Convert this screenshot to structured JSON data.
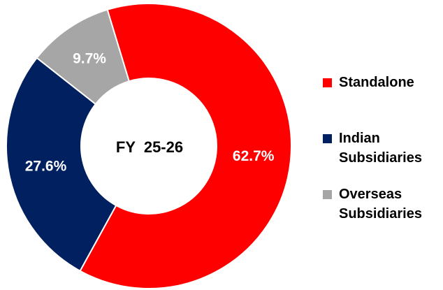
{
  "chart_data": {
    "type": "pie",
    "center_label": "FY  25-26",
    "categories": [
      "Standalone",
      "Indian Subsidiaries",
      "Overseas Subsidiaries"
    ],
    "values": [
      62.7,
      27.6,
      9.7
    ],
    "value_labels": [
      "62.7%",
      "27.6%",
      "9.7%"
    ],
    "colors": [
      "#ff0000",
      "#002060",
      "#a6a6a6"
    ],
    "legend": "right"
  }
}
